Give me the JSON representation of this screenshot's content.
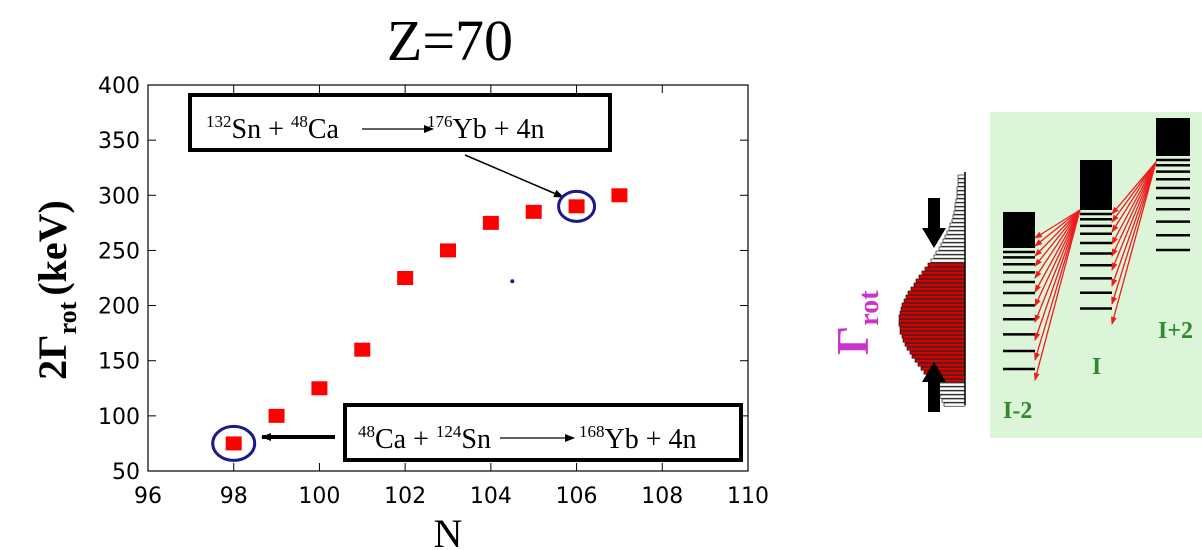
{
  "chart_data": {
    "type": "scatter",
    "title": "Z=70",
    "xlabel": "N",
    "ylabel_main": "2Γ",
    "ylabel_sub": "rot",
    "ylabel_unit": "(keV)",
    "xlim": [
      96,
      110
    ],
    "ylim": [
      50,
      400
    ],
    "x_ticks": [
      96,
      98,
      100,
      102,
      104,
      106,
      108,
      110
    ],
    "y_ticks": [
      50,
      100,
      150,
      200,
      250,
      300,
      350,
      400
    ],
    "grid": false,
    "marker_color": "#ff0000",
    "circle_color": "#1a1a8c",
    "points": [
      {
        "x": 98,
        "y": 75
      },
      {
        "x": 99,
        "y": 100
      },
      {
        "x": 100,
        "y": 125
      },
      {
        "x": 101,
        "y": 160
      },
      {
        "x": 102,
        "y": 225
      },
      {
        "x": 103,
        "y": 250
      },
      {
        "x": 104,
        "y": 275
      },
      {
        "x": 105,
        "y": 285
      },
      {
        "x": 106,
        "y": 290
      },
      {
        "x": 107,
        "y": 300
      }
    ],
    "stray_dot": {
      "x": 104.5,
      "y": 222
    },
    "annotations": [
      {
        "id": "upper",
        "target": {
          "x": 106,
          "y": 290
        },
        "parts": [
          {
            "sup": "132",
            "text": "Sn + "
          },
          {
            "sup": "48",
            "text": "Ca"
          },
          {
            "arrow": true
          },
          {
            "sup": "176",
            "text": "Yb + 4n"
          }
        ]
      },
      {
        "id": "lower",
        "target": {
          "x": 98,
          "y": 75
        },
        "parts": [
          {
            "sup": "48",
            "text": "Ca + "
          },
          {
            "sup": "124",
            "text": "Sn"
          },
          {
            "arrow": true
          },
          {
            "sup": "168",
            "text": "Yb + 4n"
          }
        ]
      }
    ]
  },
  "diagram": {
    "gamma_label": "Γ",
    "gamma_sub": "rot",
    "gamma_color": "#cc33cc",
    "label_color": "#2e8b2e",
    "background": "#dcf5d8",
    "arrow_color": "#ee1c1c",
    "level_labels": [
      "I-2",
      "I",
      "I+2"
    ]
  }
}
